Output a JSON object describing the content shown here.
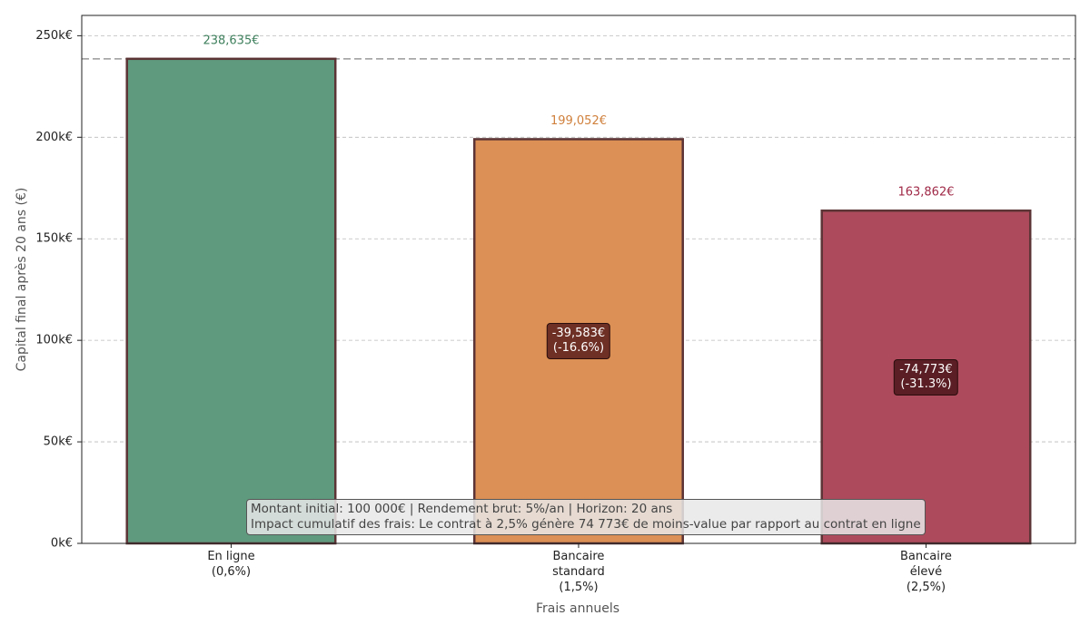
{
  "chart_data": {
    "type": "bar",
    "x_label": "Frais annuels",
    "y_label": "Capital final après 20 ans (€)",
    "categories": [
      "En ligne\n(0,6%)",
      "Bancaire\nstandard\n(1,5%)",
      "Bancaire\nélevé\n(2,5%)"
    ],
    "values": [
      238635,
      199052,
      163862
    ],
    "value_labels": [
      "238,635€",
      "199,052€",
      "163,862€"
    ],
    "colors": [
      "#5f9a7e",
      "#dc9055",
      "#ad4b5c"
    ],
    "label_colors": [
      "#3d7f5c",
      "#d0803c",
      "#a02a48"
    ],
    "edge_color": "#5c3436",
    "annotations": [
      null,
      "-39,583€\n(-16.6%)",
      "-74,773€\n(-31.3%)"
    ],
    "annotation_colors": [
      null,
      "#6e2f24",
      "#5a1e24"
    ],
    "info": "Montant initial: 100 000€ | Rendement brut: 5%/an | Horizon: 20 ans\nImpact cumulatif des frais: Le contrat à 2,5% génère 74 773€ de moins-value par rapport au contrat en ligne",
    "ylim": [
      0,
      260000
    ],
    "yticks": [
      {
        "value": 0,
        "label": "0k€"
      },
      {
        "value": 50000,
        "label": "50k€"
      },
      {
        "value": 100000,
        "label": "100k€"
      },
      {
        "value": 150000,
        "label": "150k€"
      },
      {
        "value": 200000,
        "label": "200k€"
      },
      {
        "value": 250000,
        "label": "250k€"
      }
    ],
    "grid": true
  }
}
